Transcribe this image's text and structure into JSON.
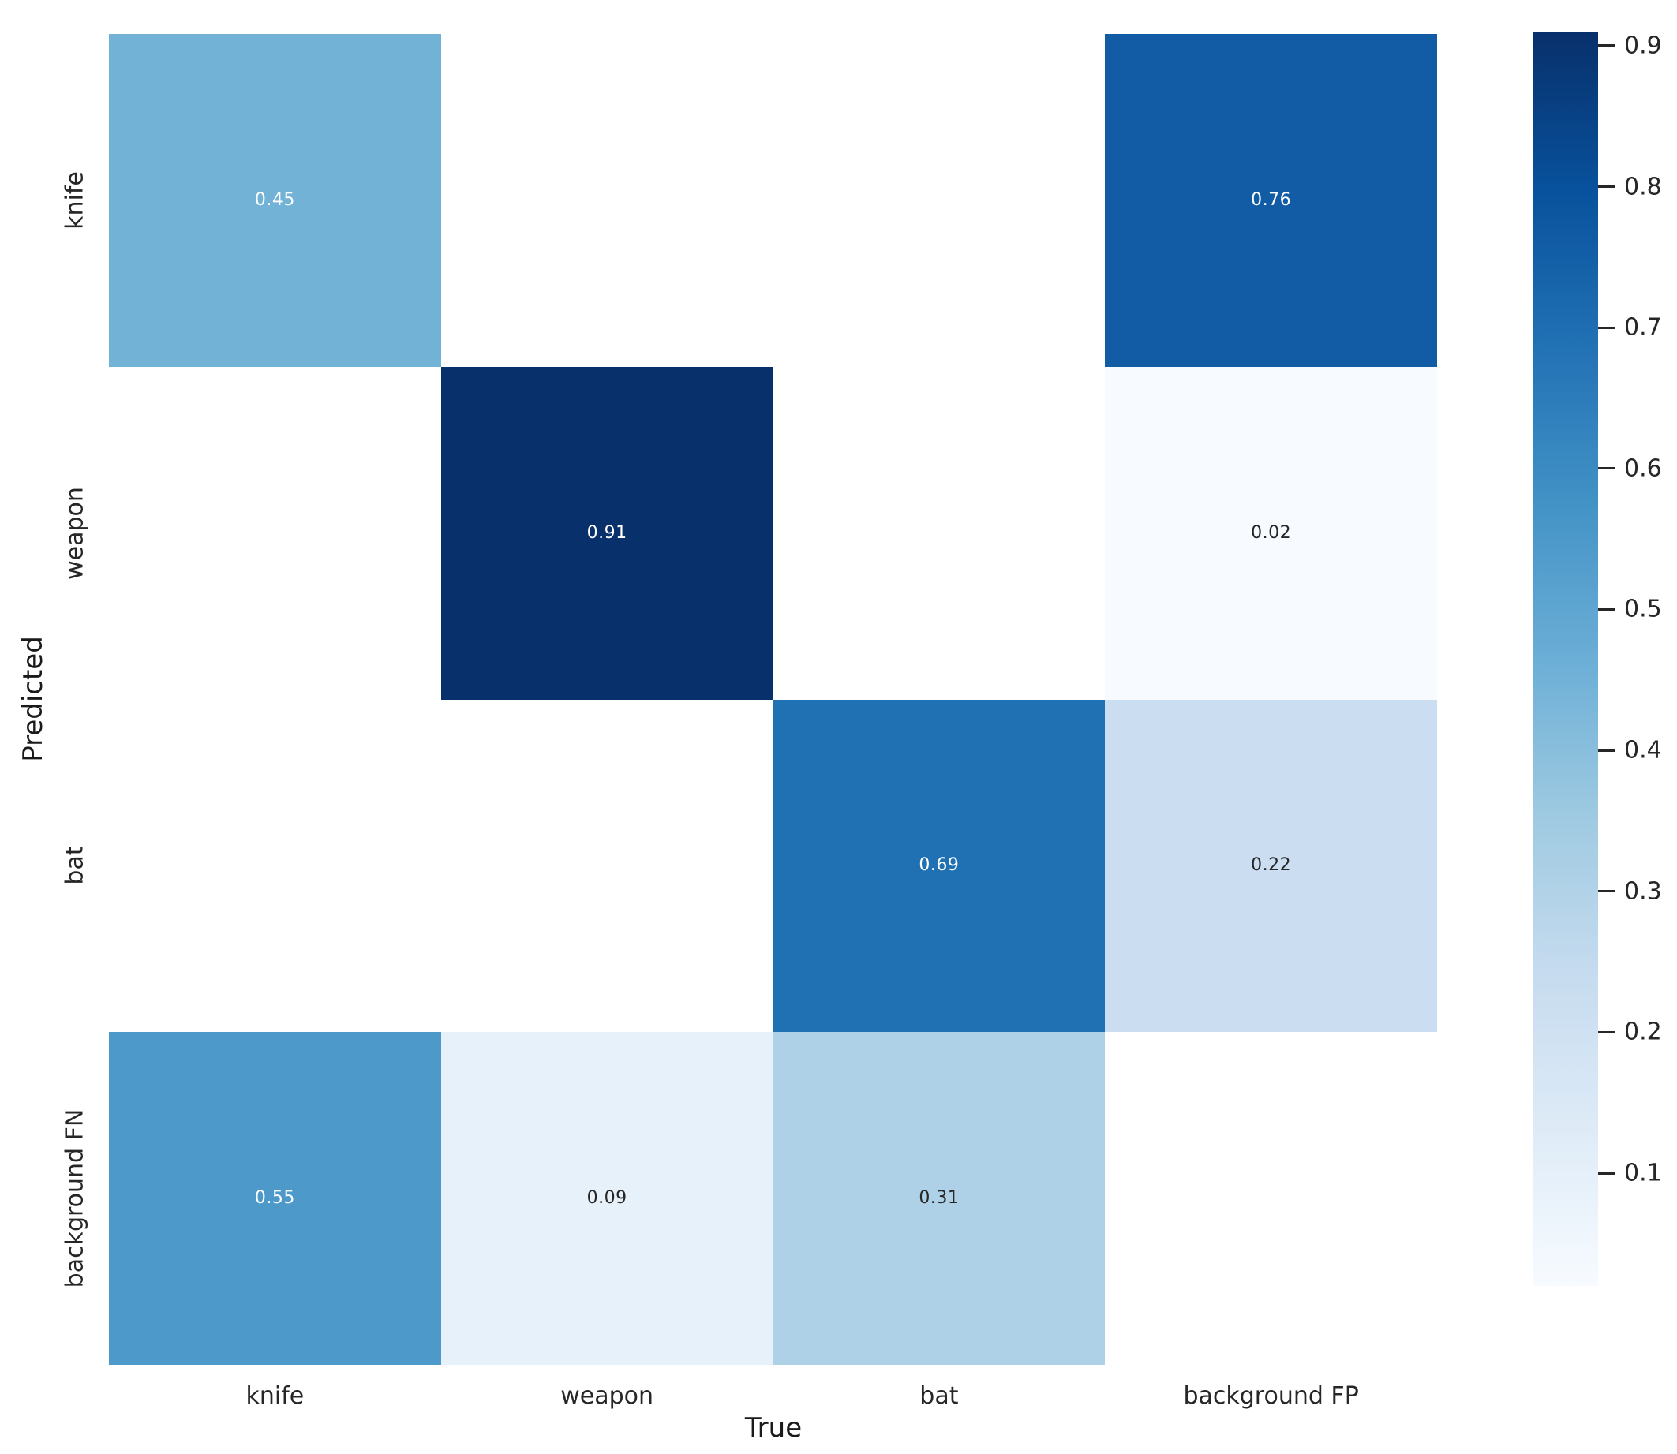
{
  "chart_data": {
    "type": "heatmap",
    "title": "",
    "xlabel": "True",
    "ylabel": "Predicted",
    "x_categories": [
      "knife",
      "weapon",
      "bat",
      "background FP"
    ],
    "y_categories": [
      "knife",
      "weapon",
      "bat",
      "background FN"
    ],
    "matrix": [
      [
        0.45,
        null,
        null,
        0.76
      ],
      [
        null,
        0.91,
        null,
        0.02
      ],
      [
        null,
        null,
        0.69,
        0.22
      ],
      [
        0.55,
        0.09,
        0.31,
        null
      ]
    ],
    "vmin": 0.02,
    "vmax": 0.91,
    "grid": false,
    "legend_position": "right-colorbar",
    "empty_cell_color": "#ffffff",
    "colormap": {
      "name": "Blues",
      "stops": [
        "#f7fbff",
        "#deebf7",
        "#c6dbef",
        "#9ecae1",
        "#6baed6",
        "#4292c6",
        "#2171b5",
        "#08519c",
        "#08306b"
      ]
    },
    "annotation_colors": {
      "light": "#ffffff",
      "dark": "#262626"
    },
    "colorbar": {
      "ticks": [
        0.9,
        0.8,
        0.7,
        0.6,
        0.5,
        0.4,
        0.3,
        0.2,
        0.1
      ]
    }
  }
}
